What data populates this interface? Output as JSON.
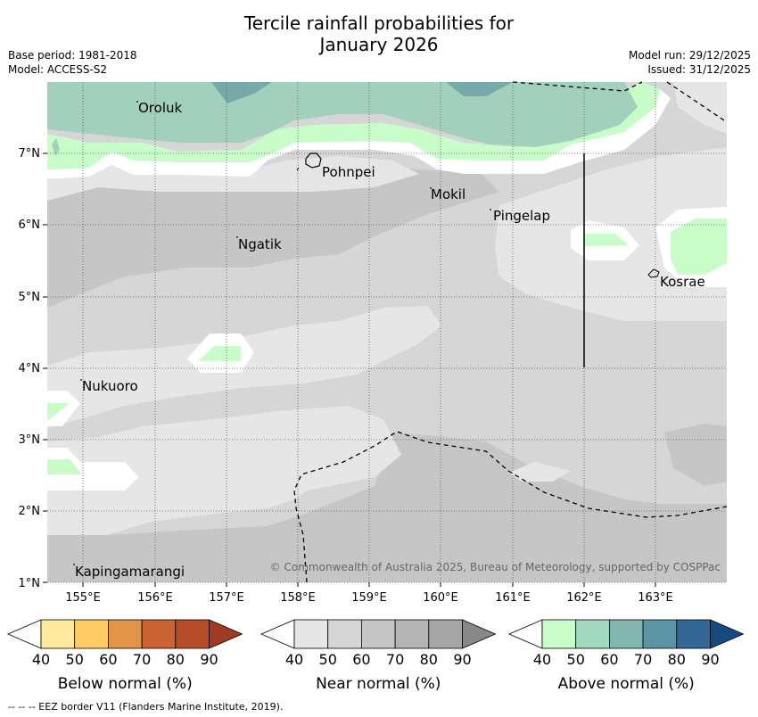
{
  "title_line1": "Tercile rainfall probabilities for",
  "title_line2": "January 2026",
  "base_period": "Base period: 1981-2018",
  "model": "Model: ACCESS-S2",
  "model_run": "Model run: 29/12/2025",
  "issued": "Issued: 31/12/2025",
  "map": {
    "lon_labels": [
      "155°E",
      "156°E",
      "157°E",
      "158°E",
      "159°E",
      "160°E",
      "161°E",
      "162°E",
      "163°E"
    ],
    "lat_labels": [
      "7°N",
      "6°N",
      "5°N",
      "4°N",
      "3°N",
      "2°N",
      "1°N"
    ],
    "places": [
      "Oroluk",
      "Pohnpei",
      "Mokil",
      "Pingelap",
      "Ngatik",
      "Kosrae",
      "Nukuoro",
      "Kapingamarangi"
    ],
    "copyright": "© Commonwealth of Australia 2025, Bureau of Meteorology, supported by COSPPac"
  },
  "legends": [
    {
      "label": "Below normal (%)",
      "ticks": [
        "40",
        "50",
        "60",
        "70",
        "80",
        "90"
      ],
      "colors": [
        "#ffffff",
        "#fee99c",
        "#fdcc66",
        "#e29548",
        "#cc6333",
        "#b44d28",
        "#a13a22"
      ]
    },
    {
      "label": "Near normal (%)",
      "ticks": [
        "40",
        "50",
        "60",
        "70",
        "80",
        "90"
      ],
      "colors": [
        "#ffffff",
        "#e6e6e6",
        "#d6d6d6",
        "#c6c6c6",
        "#b4b4b4",
        "#a6a6a6",
        "#888888"
      ]
    },
    {
      "label": "Above normal (%)",
      "ticks": [
        "40",
        "50",
        "60",
        "70",
        "80",
        "90"
      ],
      "colors": [
        "#ffffff",
        "#c8fcc8",
        "#a3d9be",
        "#81b5ae",
        "#5b94a4",
        "#336796",
        "#164a80"
      ]
    }
  ],
  "footnote": "--  --  -- EEZ border V11 (Flanders Marine Institute, 2019)."
}
